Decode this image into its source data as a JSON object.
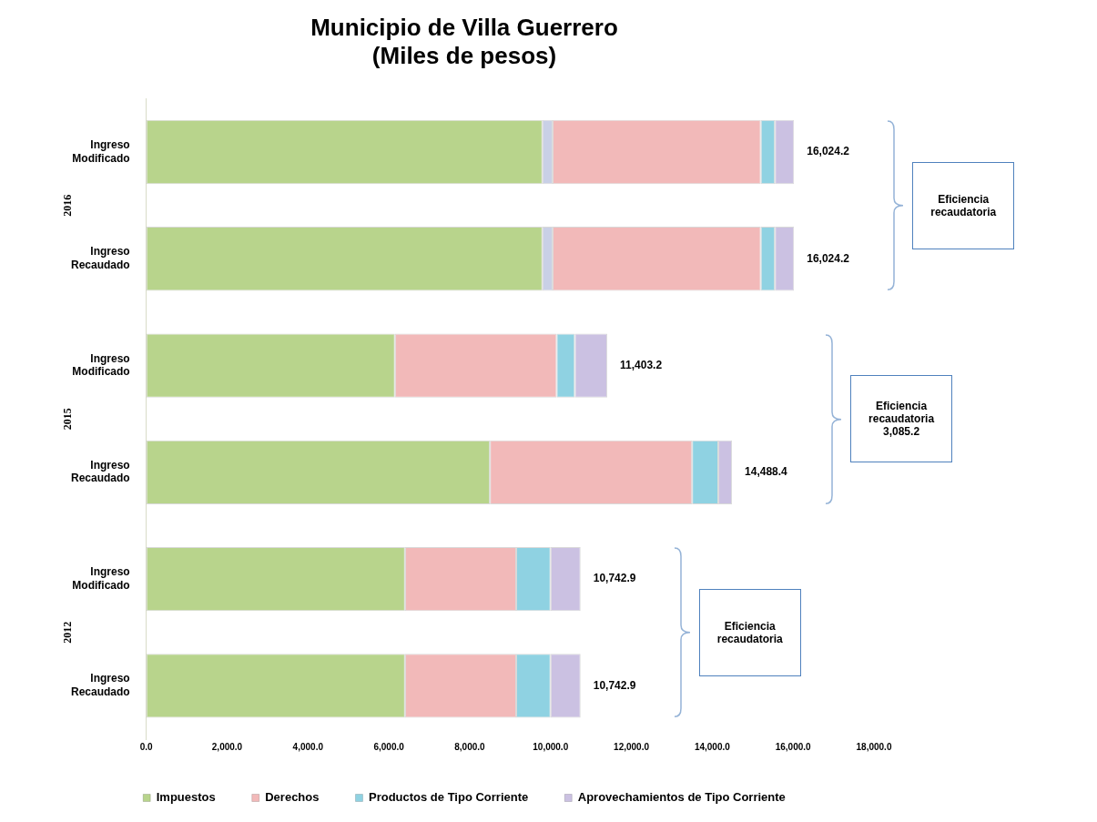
{
  "chart_data": {
    "type": "bar",
    "orientation": "horizontal",
    "stacked": true,
    "title": "Municipio de Villa Guerrero",
    "subtitle": "(Miles de pesos)",
    "categories": [
      "Ingreso Modificado",
      "Ingreso Recaudado",
      "Ingreso Modificado",
      "Ingreso Recaudado",
      "Ingreso Modificado",
      "Ingreso Recaudado"
    ],
    "series": [
      {
        "name": "Impuestos",
        "color": "#b8d48c",
        "values": [
          9800,
          9800,
          6150,
          8500,
          6400,
          6400
        ]
      },
      {
        "color": "#c9d0e6",
        "values": [
          250,
          250,
          null,
          null,
          null,
          null
        ]
      },
      {
        "name": "Derechos",
        "color": "#f2b9b9",
        "values": [
          5150,
          5150,
          4000,
          5000,
          2750,
          2750
        ]
      },
      {
        "name": "Productos de Tipo Corriente",
        "color": "#8fd2e2",
        "values": [
          350,
          350,
          450,
          650,
          850,
          850
        ]
      },
      {
        "name": "Aprovechamientos de Tipo Corriente",
        "color": "#cbc1e2",
        "values": [
          474.2,
          474.2,
          803.2,
          338.4,
          742.9,
          742.9
        ]
      }
    ],
    "totals": [
      "16,024.2",
      "16,024.2",
      "11,403.2",
      "14,488.4",
      "10,742.9",
      "10,742.9"
    ],
    "annotations": [
      "2016",
      "2015",
      "2012",
      "Eficiencia recaudatoria",
      "Eficiencia recaudatoria 3,085.2",
      "Eficiencia recaudatoria"
    ],
    "xlim": [
      0,
      18000
    ],
    "xticks": [
      {
        "value": 0,
        "label": "0.0"
      },
      {
        "value": 2000,
        "label": "2,000.0"
      },
      {
        "value": 4000,
        "label": "4,000.0"
      },
      {
        "value": 6000,
        "label": "6,000.0"
      },
      {
        "value": 8000,
        "label": "8,000.0"
      },
      {
        "value": 10000,
        "label": "10,000.0"
      },
      {
        "value": 12000,
        "label": "12,000.0"
      },
      {
        "value": 14000,
        "label": "14,000.0"
      },
      {
        "value": 16000,
        "label": "16,000.0"
      },
      {
        "value": 18000,
        "label": "18,000.0"
      }
    ],
    "grid": false,
    "legend": "bottom"
  }
}
